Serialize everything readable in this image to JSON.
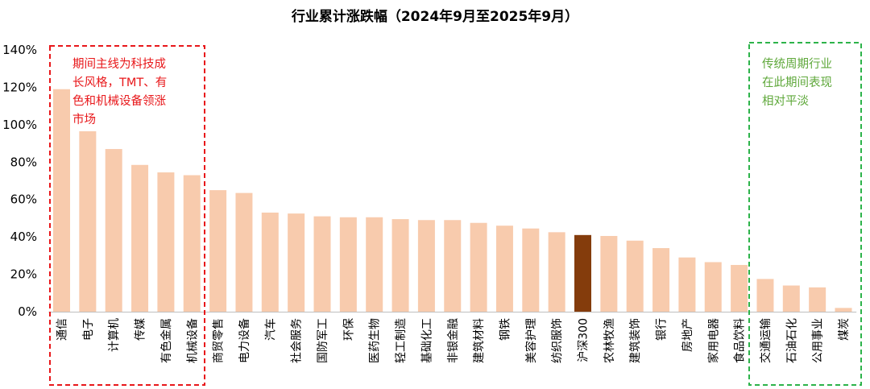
{
  "chart_data": {
    "type": "bar",
    "title": "行业累计涨跌幅（2024年9月至2025年9月）",
    "xlabel": "",
    "ylabel": "",
    "ylim": [
      0,
      140
    ],
    "yticks": [
      0,
      20,
      40,
      60,
      80,
      100,
      120,
      140
    ],
    "ytick_labels": [
      "0%",
      "20%",
      "40%",
      "60%",
      "80%",
      "100%",
      "120%",
      "140%"
    ],
    "grid": false,
    "categories": [
      "通信",
      "电子",
      "计算机",
      "传媒",
      "有色金属",
      "机械设备",
      "商贸零售",
      "电力设备",
      "汽车",
      "社会服务",
      "国防军工",
      "环保",
      "医药生物",
      "轻工制造",
      "基础化工",
      "非银金融",
      "建筑材料",
      "钢铁",
      "美容护理",
      "纺织服饰",
      "沪深300",
      "农林牧渔",
      "建筑装饰",
      "银行",
      "房地产",
      "家用电器",
      "食品饮料",
      "交通运输",
      "石油石化",
      "公用事业",
      "煤炭"
    ],
    "values": [
      119,
      96.5,
      87,
      78.5,
      74.5,
      73,
      65,
      63.5,
      53,
      52.5,
      51,
      50.5,
      50.5,
      49.5,
      49,
      49,
      47.5,
      46,
      44.5,
      42.5,
      41,
      40.5,
      38,
      34,
      29,
      26.5,
      25,
      17.5,
      14,
      13,
      2
    ],
    "colors": {
      "bar": "#f8cbad",
      "highlight": "#843c0c",
      "red_box": "#e8171a",
      "green_box": "#2db34a",
      "red_text": "#e8171a",
      "green_text": "#5fa83b"
    },
    "highlight_category": "沪深300",
    "annotations": [
      {
        "id": "red",
        "lines": [
          "期间主线为科技成",
          "长风格，TMT、有",
          "色和机械设备领涨",
          "市场"
        ],
        "group_start": 0,
        "group_end": 5
      },
      {
        "id": "green",
        "lines": [
          "传统周期行业",
          "在此期间表现",
          "相对平淡"
        ],
        "group_start": 27,
        "group_end": 30
      }
    ]
  }
}
